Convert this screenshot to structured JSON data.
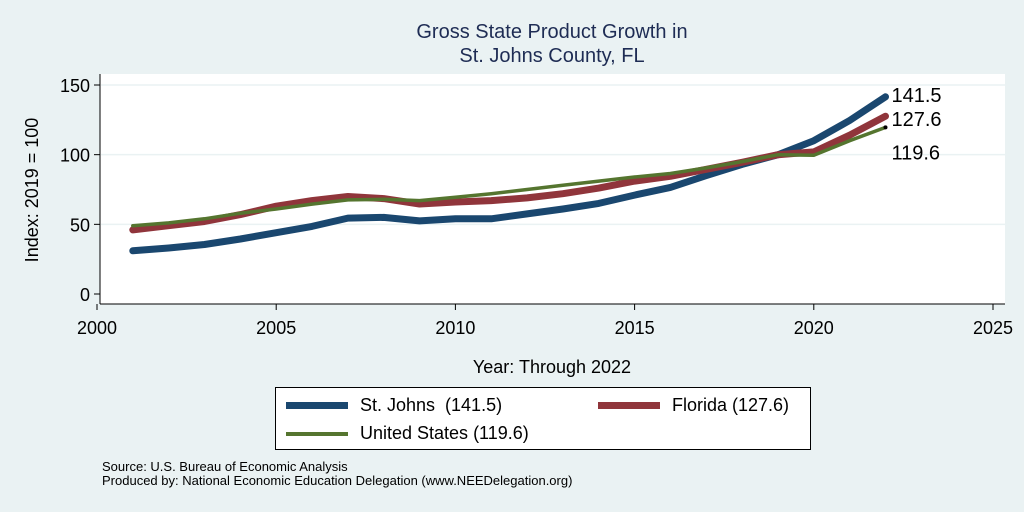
{
  "chart_data": {
    "type": "line",
    "title": [
      "Gross State Product Growth in",
      "St. Johns County, FL"
    ],
    "xlabel": "Year: Through 2022",
    "ylabel": "Index: 2019 = 100",
    "xlim": [
      2000,
      2025
    ],
    "ylim": [
      0,
      150
    ],
    "xticks": [
      2000,
      2005,
      2010,
      2015,
      2020,
      2025
    ],
    "yticks": [
      0,
      50,
      100,
      150
    ],
    "grid": "horizontal",
    "x": [
      2001,
      2002,
      2003,
      2004,
      2005,
      2006,
      2007,
      2008,
      2009,
      2010,
      2011,
      2012,
      2013,
      2014,
      2015,
      2016,
      2017,
      2018,
      2019,
      2020,
      2021,
      2022
    ],
    "series": [
      {
        "name": "St. Johns",
        "color": "#1a476f",
        "values": [
          31,
          33,
          35.5,
          39.5,
          44,
          48.5,
          54.5,
          55,
          52.5,
          54,
          54,
          57.5,
          61,
          65,
          71,
          76.5,
          85,
          93,
          100,
          110,
          124.5,
          141.5
        ],
        "end_label": "141.5",
        "legend_label": "St. Johns  (141.5)"
      },
      {
        "name": "Florida",
        "color": "#90353b",
        "values": [
          46,
          49,
          52,
          57,
          63,
          67,
          70,
          68.5,
          64.6,
          66,
          67,
          69,
          72,
          76,
          81,
          84.5,
          89.5,
          94.5,
          100,
          102,
          114,
          127.6
        ],
        "end_label": "127.6",
        "legend_label": "Florida (127.6)"
      },
      {
        "name": "United States",
        "color": "#55752f",
        "values": [
          49,
          51,
          54,
          58,
          61,
          64.5,
          67.5,
          68,
          67,
          69.5,
          72,
          75,
          78,
          81,
          84,
          86.5,
          90.5,
          95,
          100,
          99.6,
          110,
          119.6
        ],
        "end_label": "119.6",
        "legend_label": "United States (119.6)"
      }
    ],
    "legend_position": "bottom"
  },
  "footer": {
    "source": "Source: U.S. Bureau of Economic Analysis",
    "produced": "Produced by: National Economic Education Delegation (www.NEEDelegation.org)"
  }
}
